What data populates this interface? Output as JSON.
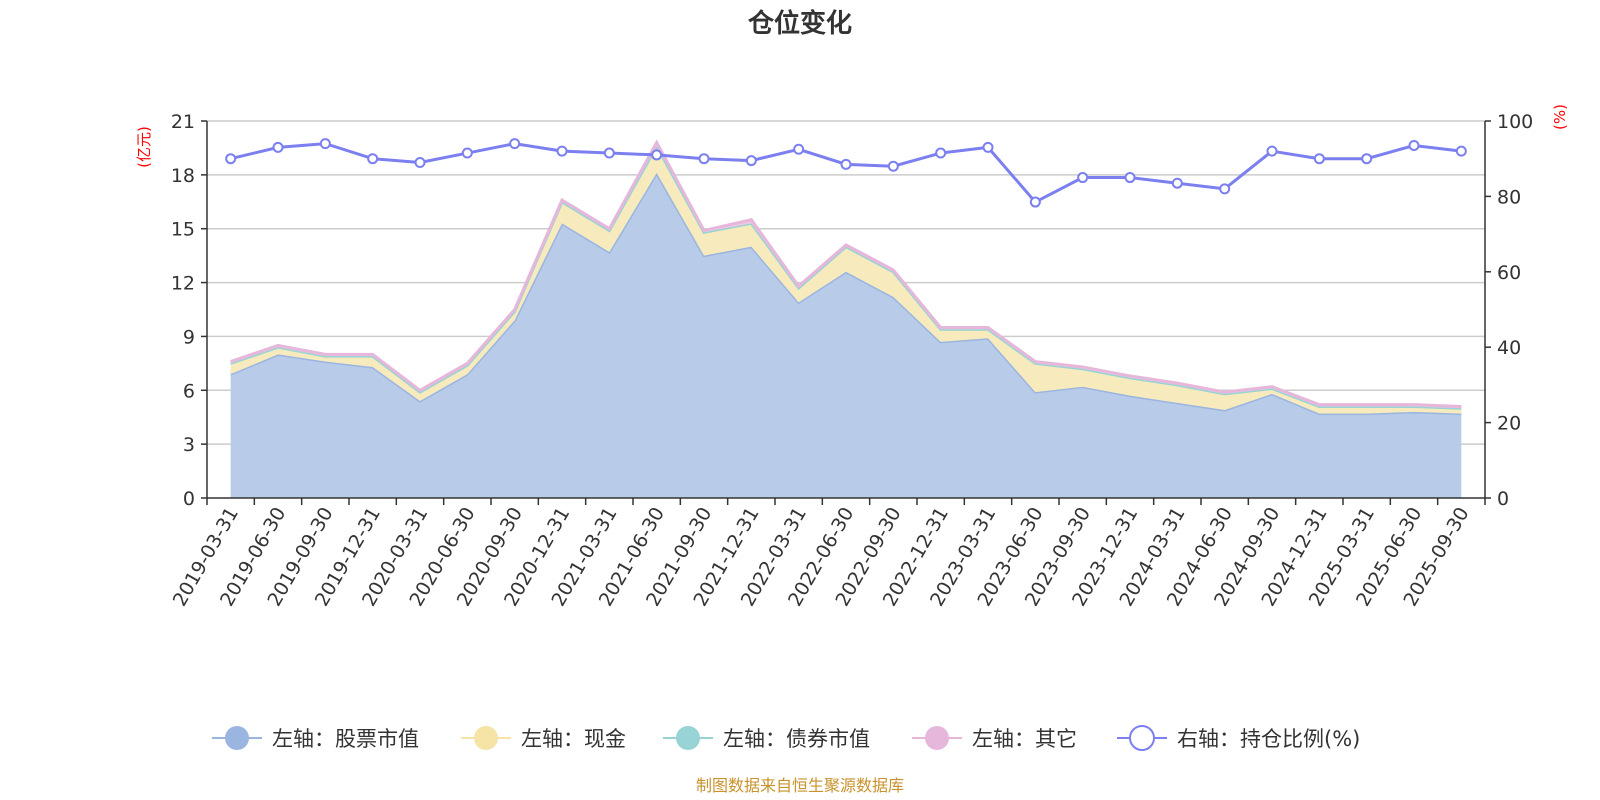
{
  "chart_data": {
    "type": "area",
    "title": "仓位变化",
    "left_axis_unit": "(亿元)",
    "right_axis_unit": "(%)",
    "left_ylim": [
      0,
      21
    ],
    "left_ticks": [
      "0",
      "3",
      "6",
      "9",
      "12",
      "15",
      "18",
      "21"
    ],
    "right_ylim": [
      0,
      100
    ],
    "right_ticks": [
      "0",
      "20",
      "40",
      "60",
      "80",
      "100"
    ],
    "categories": [
      "2019-03-31",
      "2019-06-30",
      "2019-09-30",
      "2019-12-31",
      "2020-03-31",
      "2020-06-30",
      "2020-09-30",
      "2020-12-31",
      "2021-03-31",
      "2021-06-30",
      "2021-09-30",
      "2021-12-31",
      "2022-03-31",
      "2022-06-30",
      "2022-09-30",
      "2022-12-31",
      "2023-03-31",
      "2023-06-30",
      "2023-09-30",
      "2023-12-31",
      "2024-03-31",
      "2024-06-30",
      "2024-09-30",
      "2024-12-31",
      "2025-03-31",
      "2025-06-30",
      "2025-09-30"
    ],
    "series": [
      {
        "name": "左轴：股票市值",
        "axis": "left",
        "color": "#9ab5e0",
        "fill": "#b8cbe9",
        "values": [
          6.9,
          8.0,
          7.6,
          7.3,
          5.4,
          6.9,
          9.9,
          15.3,
          13.7,
          18.1,
          13.5,
          14.0,
          10.9,
          12.6,
          11.2,
          8.7,
          8.9,
          5.9,
          6.2,
          5.7,
          5.3,
          4.9,
          5.8,
          4.7,
          4.7,
          4.8,
          4.7
        ]
      },
      {
        "name": "左轴：现金",
        "axis": "left",
        "color": "#f5e4a6",
        "fill": "#f7ebbd",
        "values": [
          0.6,
          0.4,
          0.3,
          0.6,
          0.5,
          0.5,
          0.5,
          1.2,
          1.2,
          1.5,
          1.3,
          1.3,
          0.8,
          1.4,
          1.4,
          0.7,
          0.5,
          1.6,
          1.0,
          1.0,
          1.0,
          0.9,
          0.3,
          0.4,
          0.4,
          0.3,
          0.3
        ]
      },
      {
        "name": "左轴：债券市值",
        "axis": "left",
        "color": "#98d3d6",
        "fill": "#a8d9db",
        "values": [
          0,
          0,
          0,
          0,
          0,
          0,
          0,
          0,
          0,
          0,
          0,
          0,
          0,
          0,
          0,
          0,
          0,
          0,
          0,
          0,
          0,
          0,
          0,
          0,
          0,
          0,
          0
        ]
      },
      {
        "name": "左轴：其它",
        "axis": "left",
        "color": "#e6b7da",
        "fill": "#eec8e2",
        "values": [
          0.1,
          0.1,
          0.1,
          0.1,
          0.1,
          0.1,
          0.1,
          0.1,
          0.1,
          0.2,
          0.1,
          0.2,
          0.1,
          0.1,
          0.1,
          0.1,
          0.1,
          0.1,
          0.1,
          0.1,
          0.1,
          0.1,
          0.1,
          0.1,
          0.1,
          0.1,
          0.1
        ]
      },
      {
        "name": "右轴：持仓比例(%)",
        "axis": "right",
        "color": "#7b7ff0",
        "values": [
          90,
          93,
          94,
          90,
          89,
          91.5,
          94,
          92,
          91.5,
          91,
          90,
          89.5,
          92.5,
          88.5,
          88,
          91.5,
          93,
          78.5,
          85,
          85,
          83.5,
          82,
          92,
          90,
          90,
          93.5,
          92
        ]
      }
    ],
    "source": "制图数据来自恒生聚源数据库"
  }
}
